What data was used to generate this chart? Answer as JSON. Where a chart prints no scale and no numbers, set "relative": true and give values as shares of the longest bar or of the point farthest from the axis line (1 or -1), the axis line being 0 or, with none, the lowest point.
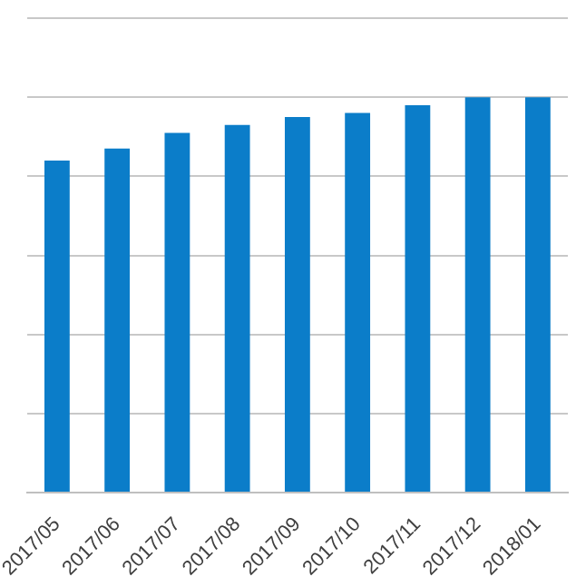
{
  "chart_data": {
    "type": "bar",
    "relative": true,
    "grid": "y",
    "legend": false,
    "color": "#0b7dc9",
    "categories": [
      "2017/05",
      "2017/06",
      "2017/07",
      "2017/08",
      "2017/09",
      "2017/10",
      "2017/11",
      "2017/12",
      "2018/01"
    ],
    "values": [
      0.84,
      0.87,
      0.91,
      0.93,
      0.95,
      0.96,
      0.98,
      1,
      1
    ]
  }
}
